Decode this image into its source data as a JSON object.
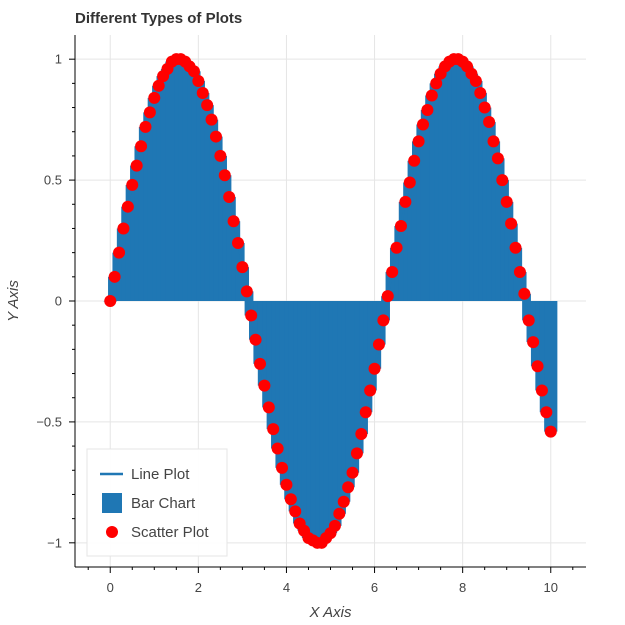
{
  "chart_data": {
    "type": "line+bar+scatter",
    "title": "Different Types of Plots",
    "xlabel": "X Axis",
    "ylabel": "Y Axis",
    "xlim": [
      -0.8,
      10.8
    ],
    "ylim": [
      -1.1,
      1.1
    ],
    "x_ticks": [
      0,
      2,
      4,
      6,
      8,
      10
    ],
    "x_tick_labels": [
      "0",
      "2",
      "4",
      "6",
      "8",
      "10"
    ],
    "y_ticks": [
      -1,
      -0.5,
      0,
      0.5,
      1
    ],
    "y_tick_labels": [
      "−1",
      "−0.5",
      "0",
      "0.5",
      "1"
    ],
    "grid": true,
    "legend_position": "bottom-left",
    "x": [
      0,
      0.1,
      0.2,
      0.3,
      0.4,
      0.5,
      0.6,
      0.7,
      0.8,
      0.9,
      1.0,
      1.1,
      1.2,
      1.3,
      1.4,
      1.5,
      1.6,
      1.7,
      1.8,
      1.9,
      2.0,
      2.1,
      2.2,
      2.3,
      2.4,
      2.5,
      2.6,
      2.7,
      2.8,
      2.9,
      3.0,
      3.1,
      3.2,
      3.3,
      3.4,
      3.5,
      3.6,
      3.7,
      3.8,
      3.9,
      4.0,
      4.1,
      4.2,
      4.3,
      4.4,
      4.5,
      4.6,
      4.7,
      4.8,
      4.9,
      5.0,
      5.1,
      5.2,
      5.3,
      5.4,
      5.5,
      5.6,
      5.7,
      5.8,
      5.9,
      6.0,
      6.1,
      6.2,
      6.3,
      6.4,
      6.5,
      6.6,
      6.7,
      6.8,
      6.9,
      7.0,
      7.1,
      7.2,
      7.3,
      7.4,
      7.5,
      7.6,
      7.7,
      7.8,
      7.9,
      8.0,
      8.1,
      8.2,
      8.3,
      8.4,
      8.5,
      8.6,
      8.7,
      8.8,
      8.9,
      9.0,
      9.1,
      9.2,
      9.3,
      9.4,
      9.5,
      9.6,
      9.7,
      9.8,
      9.9,
      10.0
    ],
    "y": [
      0.0,
      0.1,
      0.2,
      0.3,
      0.39,
      0.48,
      0.56,
      0.64,
      0.72,
      0.78,
      0.84,
      0.89,
      0.93,
      0.96,
      0.99,
      1.0,
      1.0,
      0.99,
      0.97,
      0.95,
      0.91,
      0.86,
      0.81,
      0.75,
      0.68,
      0.6,
      0.52,
      0.43,
      0.33,
      0.24,
      0.14,
      0.04,
      -0.06,
      -0.16,
      -0.26,
      -0.35,
      -0.44,
      -0.53,
      -0.61,
      -0.69,
      -0.76,
      -0.82,
      -0.87,
      -0.92,
      -0.95,
      -0.98,
      -0.99,
      -1.0,
      -1.0,
      -0.98,
      -0.96,
      -0.93,
      -0.88,
      -0.83,
      -0.77,
      -0.71,
      -0.63,
      -0.55,
      -0.46,
      -0.37,
      -0.28,
      -0.18,
      -0.08,
      0.02,
      0.12,
      0.22,
      0.31,
      0.41,
      0.49,
      0.58,
      0.66,
      0.73,
      0.79,
      0.85,
      0.9,
      0.94,
      0.97,
      0.99,
      1.0,
      1.0,
      0.99,
      0.97,
      0.94,
      0.91,
      0.86,
      0.8,
      0.74,
      0.66,
      0.59,
      0.5,
      0.41,
      0.32,
      0.22,
      0.12,
      0.03,
      -0.08,
      -0.17,
      -0.27,
      -0.37,
      -0.46,
      -0.54
    ],
    "bar_width": 0.3,
    "series": [
      {
        "name": "Line Plot",
        "kind": "line",
        "color": "#1f77b4"
      },
      {
        "name": "Bar Chart",
        "kind": "bar",
        "color": "#1f77b4"
      },
      {
        "name": "Scatter Plot",
        "kind": "scatter",
        "color": "#ff0000"
      }
    ]
  }
}
